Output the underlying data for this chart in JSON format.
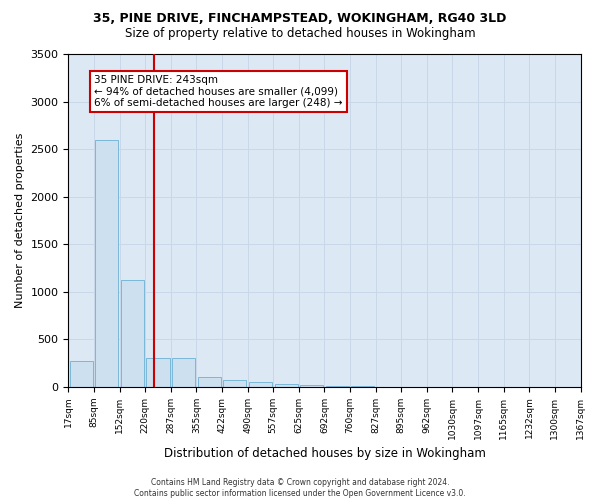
{
  "title1": "35, PINE DRIVE, FINCHAMPSTEAD, WOKINGHAM, RG40 3LD",
  "title2": "Size of property relative to detached houses in Wokingham",
  "xlabel": "Distribution of detached houses by size in Wokingham",
  "ylabel": "Number of detached properties",
  "bin_labels": [
    "17sqm",
    "85sqm",
    "152sqm",
    "220sqm",
    "287sqm",
    "355sqm",
    "422sqm",
    "490sqm",
    "557sqm",
    "625sqm",
    "692sqm",
    "760sqm",
    "827sqm",
    "895sqm",
    "962sqm",
    "1030sqm",
    "1097sqm",
    "1165sqm",
    "1232sqm",
    "1300sqm",
    "1367sqm"
  ],
  "bar_heights": [
    275,
    2600,
    1125,
    300,
    300,
    105,
    75,
    50,
    28,
    18,
    8,
    5,
    3,
    2,
    2,
    1,
    1,
    0,
    0,
    0
  ],
  "bar_color": "#cce0f0",
  "bar_edge_color": "#7ab8d9",
  "vline_color": "#cc0000",
  "grid_color": "#c8d8e8",
  "bg_color": "#dce8f4",
  "annotation_line1": "35 PINE DRIVE: 243sqm",
  "annotation_line2": "← 94% of detached houses are smaller (4,099)",
  "annotation_line3": "6% of semi-detached houses are larger (248) →",
  "annotation_box_color": "#ffffff",
  "annotation_box_edge_color": "#cc0000",
  "footer": "Contains HM Land Registry data © Crown copyright and database right 2024.\nContains public sector information licensed under the Open Government Licence v3.0.",
  "ylim": [
    0,
    3500
  ],
  "yticks": [
    0,
    500,
    1000,
    1500,
    2000,
    2500,
    3000,
    3500
  ],
  "vline_x_data": 2.85
}
